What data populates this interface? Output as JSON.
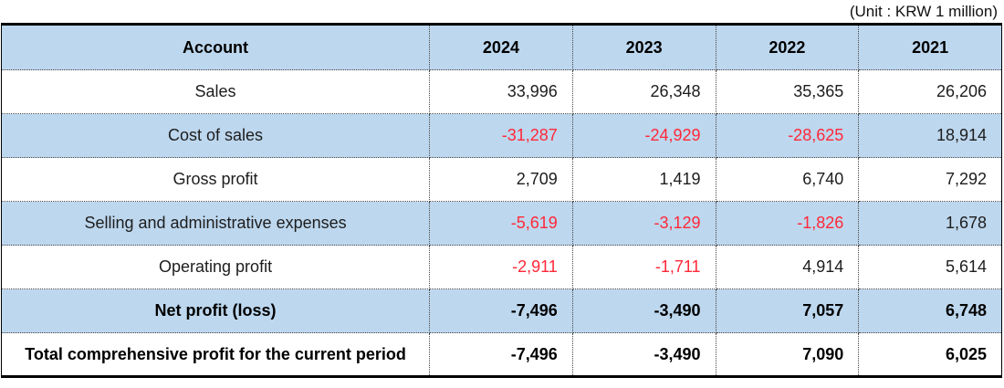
{
  "unit_label": "(Unit : KRW 1 million)",
  "colors": {
    "header_bg": "#BDD7EE",
    "band_bg": "#BDD7EE",
    "negative": "#FF2838"
  },
  "table": {
    "columns": [
      "Account",
      "2024",
      "2023",
      "2022",
      "2021"
    ],
    "rows": [
      {
        "account": "Sales",
        "values": [
          "33,996",
          "26,348",
          "35,365",
          "26,206"
        ]
      },
      {
        "account": "Cost of sales",
        "values": [
          "-31,287",
          "-24,929",
          "-28,625",
          "18,914"
        ]
      },
      {
        "account": "Gross profit",
        "values": [
          "2,709",
          "1,419",
          "6,740",
          "7,292"
        ]
      },
      {
        "account": "Selling and administrative expenses",
        "values": [
          "-5,619",
          "-3,129",
          "-1,826",
          "1,678"
        ]
      },
      {
        "account": "Operating profit",
        "values": [
          "-2,911",
          "-1,711",
          "4,914",
          "5,614"
        ]
      },
      {
        "account": "Net profit (loss)",
        "values": [
          "-7,496",
          "-3,490",
          "7,057",
          "6,748"
        ]
      },
      {
        "account": "Total comprehensive profit for the current period",
        "values": [
          "-7,496",
          "-3,490",
          "7,090",
          "6,025"
        ]
      }
    ]
  }
}
